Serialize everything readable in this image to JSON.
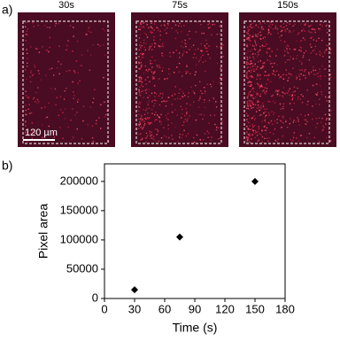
{
  "panel_labels": [
    "a)",
    "b)"
  ],
  "images": [
    {
      "label": "30s"
    },
    {
      "label": "75s"
    },
    {
      "label": "150s"
    }
  ],
  "scale_bar": "120 µm",
  "chart_data": {
    "type": "scatter",
    "xlabel": "Time (s)",
    "ylabel": "Pixel area",
    "x": [
      30,
      75,
      150
    ],
    "values": [
      15000,
      105000,
      200000
    ],
    "color": "#000000",
    "xlim": [
      0,
      180
    ],
    "xticks": [
      0,
      30,
      60,
      90,
      120,
      150,
      180
    ],
    "ylim": [
      0,
      230000
    ],
    "yticks": [
      0,
      50000,
      100000,
      150000,
      200000
    ]
  }
}
